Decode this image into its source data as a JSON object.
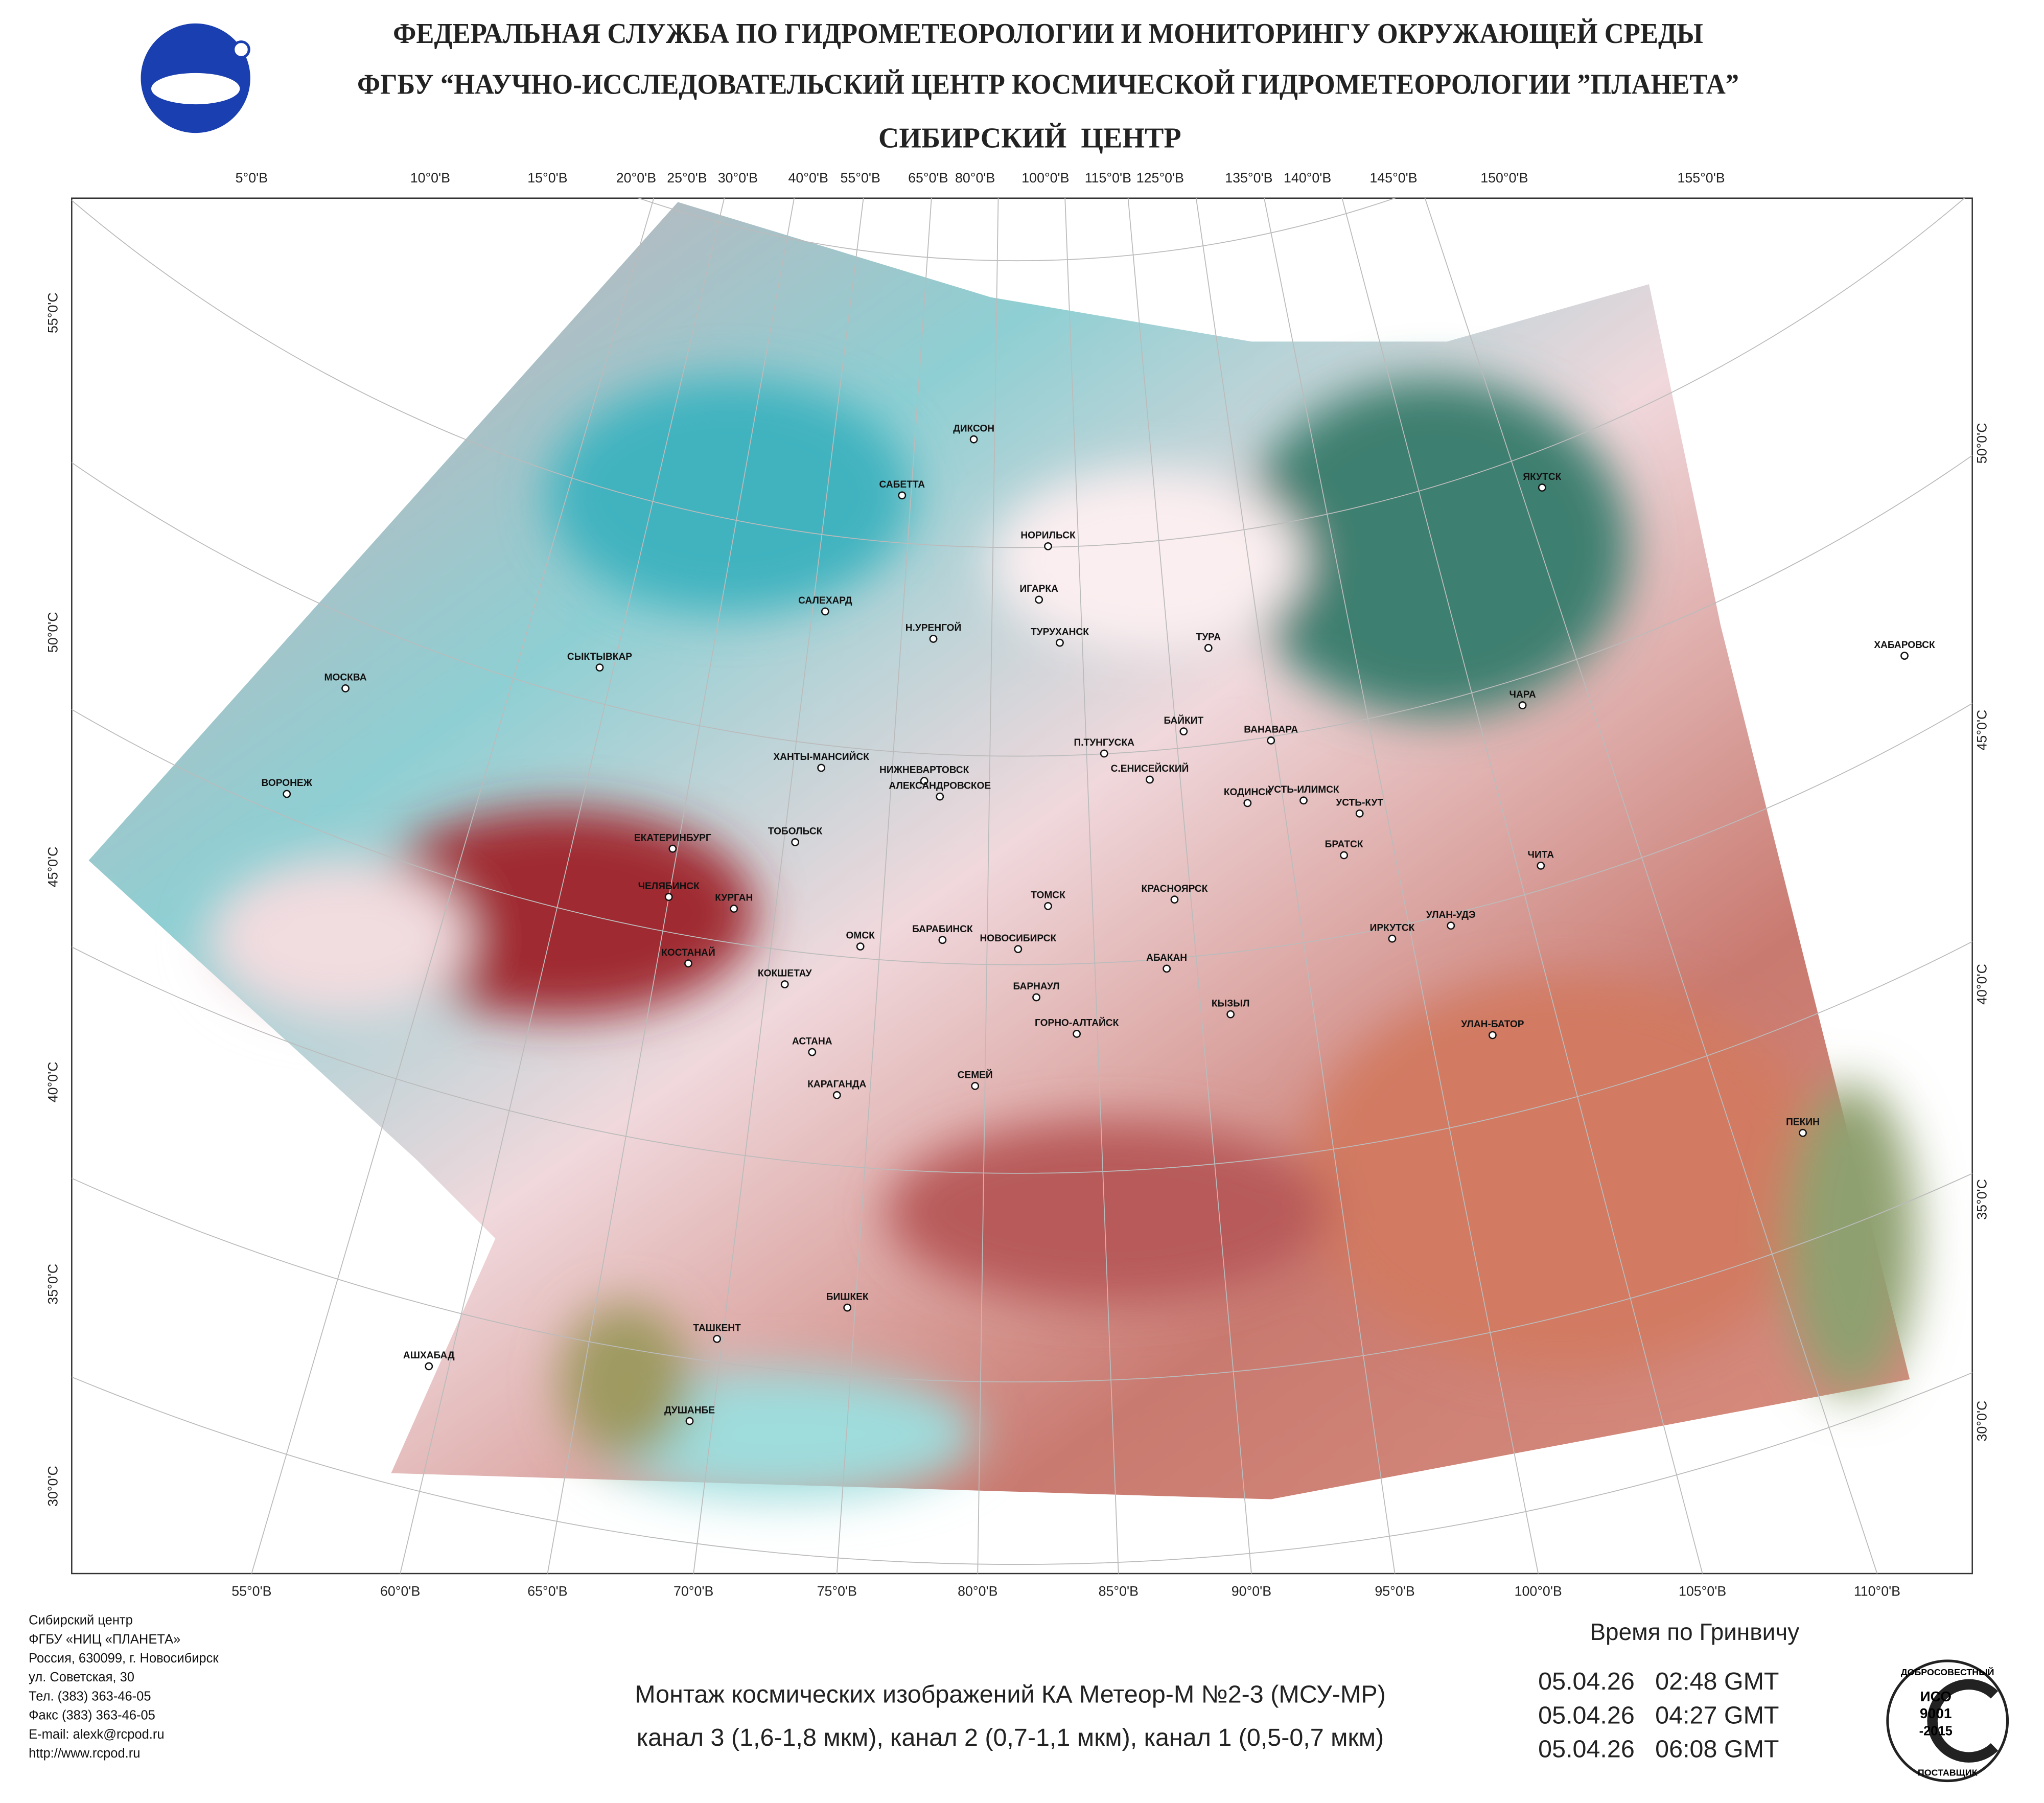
{
  "header": {
    "agency": "ФЕДЕРАЛЬНАЯ СЛУЖБА ПО ГИДРОМЕТЕОРОЛОГИИ И МОНИТОРИНГУ ОКРУЖАЮЩЕЙ СРЕДЫ",
    "institute": "ФГБУ “НАУЧНО-ИССЛЕДОВАТЕЛЬСКИЙ ЦЕНТР КОСМИЧЕСКОЙ ГИДРОМЕТЕОРОЛОГИИ ”ПЛАНЕТА”",
    "center": "СИБИРСКИЙ  ЦЕНТР"
  },
  "map": {
    "top_labels": [
      "5°0'В",
      "10°0'В",
      "15°0'В",
      "20°0'В",
      "25°0'В",
      "30°0'В",
      "40°0'В",
      "55°0'В",
      "65°0'В",
      "80°0'В",
      "100°0'В",
      "115°0'В",
      "125°0'В",
      "135°0'В",
      "140°0'В",
      "145°0'В",
      "150°0'В",
      "155°0'В"
    ],
    "bottom_labels": [
      "55°0'В",
      "60°0'В",
      "65°0'В",
      "70°0'В",
      "75°0'В",
      "80°0'В",
      "85°0'В",
      "90°0'В",
      "95°0'В",
      "100°0'В",
      "105°0'В",
      "110°0'В"
    ],
    "left_labels": [
      "55°0'С",
      "50°0'С",
      "45°0'С",
      "40°0'С",
      "35°0'С",
      "30°0'С"
    ],
    "right_labels": [
      "50°0'С",
      "45°0'С",
      "40°0'С",
      "35°0'С",
      "30°0'С"
    ],
    "cities": [
      "ДИКСОН",
      "САБЕТТА",
      "НОРИЛЬСК",
      "ИГАРКА",
      "ТУРУХАНСК",
      "САЛЕХАРД",
      "Н.УРЕНГОЙ",
      "ТУРА",
      "ЯКУТСК",
      "ХАБАРОВСК",
      "ЧАРА",
      "СЫКТЫВКАР",
      "МОСКВА",
      "ВОРОНЕЖ",
      "БАЙКИТ",
      "ВАНАВАРА",
      "П.ТУНГУСКА",
      "ХАНТЫ-МАНСИЙСК",
      "НИЖНЕВАРТОВСК",
      "С.ЕНИСЕЙСКИЙ",
      "УСТЬ-ИЛИМСК",
      "АЛЕКСАНДРОВСКОЕ",
      "КОДИНСК",
      "УСТЬ-КУТ",
      "ЕКАТЕРИНБУРГ",
      "ТОБОЛЬСК",
      "БРАТСК",
      "ЧИТА",
      "ЧЕЛЯБИНСК",
      "ТОМСК",
      "КРАСНОЯРСК",
      "КУРГАН",
      "ОМСК",
      "ИРКУТСК",
      "УЛАН-УДЭ",
      "НОВОСИБИРСК",
      "БАРАБИНСК",
      "КОСТАНАЙ",
      "КОКШЕТАУ",
      "АБАКАН",
      "БАРНАУЛ",
      "КЫЗЫЛ",
      "ГОРНО-АЛТАЙСК",
      "УЛАН-БАТОР",
      "АСТАНА",
      "СЕМЕЙ",
      "КАРАГАНДА",
      "ПЕКИН",
      "БИШКЕК",
      "ТАШКЕНТ",
      "АШХАБАД",
      "ДУШАНБЕ"
    ]
  },
  "footer": {
    "address": [
      "Сибирский центр",
      "ФГБУ «НИЦ «ПЛАНЕТА»",
      "Россия, 630099, г. Новосибирск",
      "ул. Советская, 30",
      "Тел. (383) 363-46-05",
      "Факс (383) 363-46-05",
      "E-mail: alexk@rcpod.ru",
      "http://www.rcpod.ru"
    ],
    "caption": [
      "Монтаж космических изображений КА Метеор-М №2-3 (МСУ-МР)",
      "канал 3 (1,6-1,8 мкм), канал 2 (0,7-1,1 мкм), канал 1 (0,5-0,7 мкм)"
    ],
    "time_heading": "Время по Гринвичу",
    "times": [
      "05.04.26   02:48 GMT",
      "05.04.26   04:27 GMT",
      "05.04.26   06:08 GMT"
    ],
    "badge": {
      "top": "ДОБРОСОВЕСТНЫЙ",
      "iso": "ИСО",
      "num": "9001",
      "year": "-2015",
      "bottom": "ПОСТАВЩИК"
    }
  }
}
